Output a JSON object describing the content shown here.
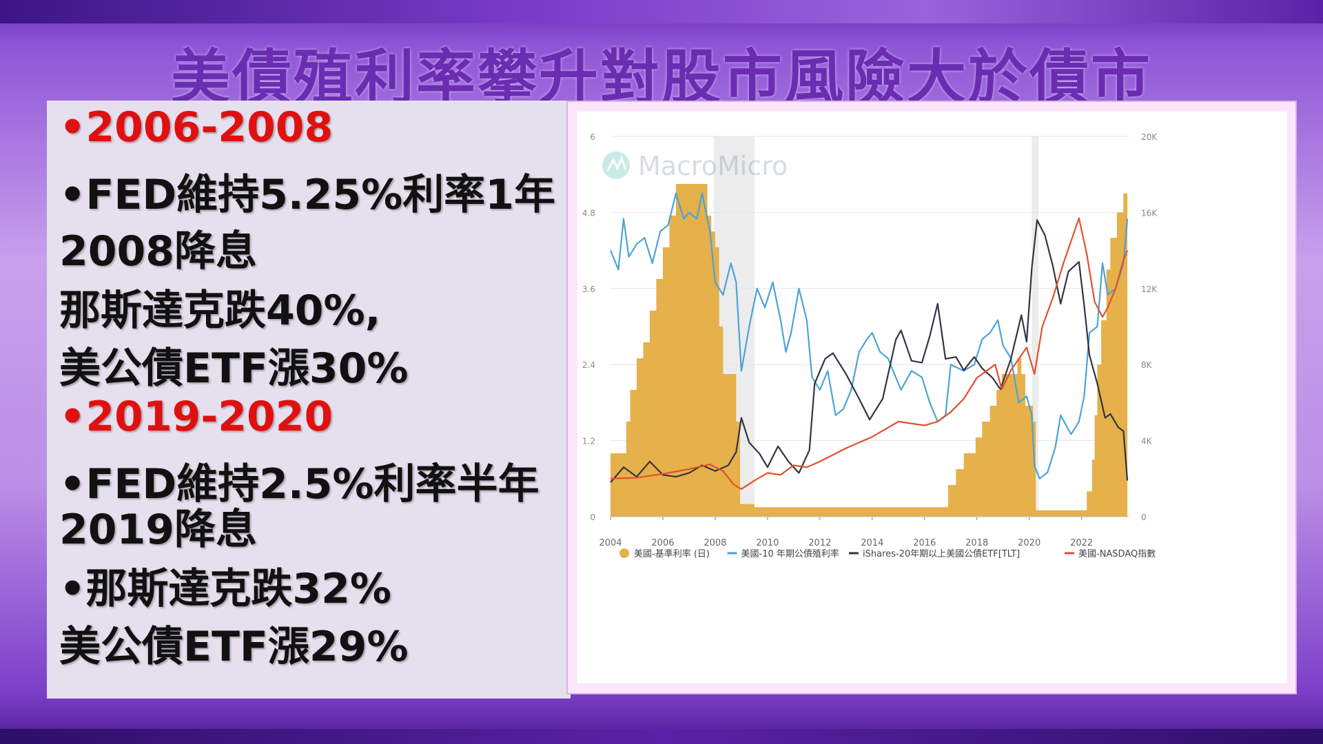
{
  "slide": {
    "title": "美債殖利率攀升對股市風險大於債市",
    "lines": [
      {
        "text": "•2006-2008",
        "style": "red"
      },
      {
        "text": "•FED維持5.25%利率1年",
        "style": "black"
      },
      {
        "text": "2008降息",
        "style": "black"
      },
      {
        "text": "那斯達克跌40%,",
        "style": "black"
      },
      {
        "text": "美公債ETF漲30%",
        "style": "black"
      },
      {
        "text": "•2019-2020",
        "style": "red"
      },
      {
        "text": "•FED維持2.5%利率半年",
        "style": "black"
      },
      {
        "text": "2019降息",
        "style": "black"
      },
      {
        "text": "•那斯達克跌32%",
        "style": "black"
      },
      {
        "text": "美公債ETF漲29%",
        "style": "black"
      }
    ],
    "watermark": "MacroMicro"
  },
  "chart_data": {
    "type": "line",
    "title": "",
    "x_ticks": [
      "2004",
      "2006",
      "2008",
      "2010",
      "2012",
      "2014",
      "2016",
      "2018",
      "2020",
      "2022"
    ],
    "xlim": [
      2004,
      2023.8
    ],
    "y_left_ticks": [
      "0",
      "1.2",
      "2.4",
      "3.6",
      "4.8",
      "6"
    ],
    "ylim_left": [
      0,
      6
    ],
    "y_right_ticks": [
      "0",
      "4K",
      "8K",
      "12K",
      "16K",
      "20K"
    ],
    "ylim_right": [
      0,
      20000
    ],
    "recessions": [
      [
        2007.95,
        2009.5
      ],
      [
        2020.1,
        2020.35
      ]
    ],
    "legend_position": "bottom",
    "colors": {
      "fed": "#e6b04a",
      "y10": "#4aa3d8",
      "tlt": "#2f3542",
      "nasdaq": "#e0502e"
    },
    "series": [
      {
        "name": "美國-基準利率 (日)",
        "type": "area",
        "axis": "left",
        "x": [
          2004.0,
          2004.45,
          2004.6,
          2004.75,
          2005.0,
          2005.25,
          2005.5,
          2005.75,
          2006.0,
          2006.25,
          2006.5,
          2007.0,
          2007.5,
          2007.7,
          2007.85,
          2008.0,
          2008.15,
          2008.3,
          2008.8,
          2008.95,
          2009.5,
          2012.0,
          2015.9,
          2016.9,
          2017.2,
          2017.5,
          2017.95,
          2018.2,
          2018.5,
          2018.75,
          2018.95,
          2019.55,
          2019.7,
          2019.85,
          2020.15,
          2020.25,
          2022.0,
          2022.2,
          2022.4,
          2022.5,
          2022.6,
          2022.75,
          2022.95,
          2023.1,
          2023.35,
          2023.6,
          2023.75
        ],
        "values": [
          1.0,
          1.0,
          1.5,
          2.0,
          2.5,
          2.75,
          3.25,
          3.75,
          4.25,
          4.75,
          5.25,
          5.25,
          5.25,
          4.75,
          4.5,
          4.25,
          3.0,
          2.25,
          1.5,
          0.2,
          0.15,
          0.15,
          0.15,
          0.5,
          0.75,
          1.0,
          1.25,
          1.5,
          1.75,
          2.0,
          2.25,
          2.5,
          2.25,
          1.75,
          1.5,
          0.1,
          0.1,
          0.4,
          0.9,
          1.6,
          2.4,
          3.1,
          3.9,
          4.4,
          4.8,
          5.1,
          5.3
        ]
      },
      {
        "name": "美國-10 年期公債殖利率",
        "type": "line",
        "axis": "left",
        "x": [
          2004.0,
          2004.3,
          2004.5,
          2004.7,
          2005.0,
          2005.3,
          2005.6,
          2005.9,
          2006.2,
          2006.5,
          2006.8,
          2007.0,
          2007.3,
          2007.5,
          2007.8,
          2008.0,
          2008.3,
          2008.6,
          2008.8,
          2009.0,
          2009.3,
          2009.6,
          2009.9,
          2010.2,
          2010.5,
          2010.7,
          2010.9,
          2011.2,
          2011.5,
          2011.7,
          2012.0,
          2012.3,
          2012.6,
          2012.9,
          2013.2,
          2013.5,
          2013.8,
          2014.0,
          2014.3,
          2014.6,
          2014.9,
          2015.1,
          2015.5,
          2015.9,
          2016.2,
          2016.5,
          2016.8,
          2017.0,
          2017.5,
          2017.9,
          2018.2,
          2018.5,
          2018.8,
          2019.0,
          2019.3,
          2019.6,
          2019.9,
          2020.1,
          2020.2,
          2020.4,
          2020.7,
          2021.0,
          2021.2,
          2021.6,
          2021.9,
          2022.1,
          2022.3,
          2022.6,
          2022.8,
          2023.0,
          2023.3,
          2023.6,
          2023.75
        ],
        "values": [
          4.2,
          3.9,
          4.7,
          4.1,
          4.3,
          4.4,
          4.0,
          4.5,
          4.6,
          5.1,
          4.7,
          4.8,
          4.7,
          5.1,
          4.5,
          3.7,
          3.5,
          4.0,
          3.7,
          2.3,
          3.0,
          3.6,
          3.3,
          3.7,
          3.1,
          2.6,
          2.9,
          3.6,
          3.1,
          2.2,
          2.0,
          2.3,
          1.6,
          1.7,
          2.0,
          2.6,
          2.8,
          2.9,
          2.6,
          2.5,
          2.2,
          2.0,
          2.3,
          2.2,
          1.8,
          1.5,
          1.6,
          2.4,
          2.3,
          2.4,
          2.8,
          2.9,
          3.1,
          2.7,
          2.5,
          1.8,
          1.9,
          1.6,
          0.8,
          0.6,
          0.7,
          1.1,
          1.6,
          1.3,
          1.5,
          1.9,
          2.9,
          3.0,
          4.0,
          3.5,
          3.6,
          4.0,
          4.7
        ]
      },
      {
        "name": "iShares-20年期以上美國公債ETF[TLT]",
        "type": "line",
        "axis": "right",
        "x": [
          2004.0,
          2004.5,
          2005.0,
          2005.5,
          2006.0,
          2006.5,
          2007.0,
          2007.5,
          2008.0,
          2008.5,
          2008.8,
          2009.0,
          2009.3,
          2009.7,
          2010.0,
          2010.4,
          2010.8,
          2011.2,
          2011.6,
          2011.8,
          2012.2,
          2012.5,
          2013.0,
          2013.5,
          2013.9,
          2014.4,
          2014.9,
          2015.1,
          2015.5,
          2015.9,
          2016.2,
          2016.5,
          2016.8,
          2017.2,
          2017.5,
          2017.9,
          2018.2,
          2018.6,
          2018.9,
          2019.3,
          2019.7,
          2019.9,
          2020.1,
          2020.3,
          2020.6,
          2020.9,
          2021.2,
          2021.5,
          2021.9,
          2022.1,
          2022.3,
          2022.6,
          2022.9,
          2023.1,
          2023.4,
          2023.6,
          2023.75
        ],
        "values": [
          1800,
          2600,
          2100,
          2900,
          2200,
          2100,
          2300,
          2700,
          2400,
          2700,
          3400,
          5200,
          3900,
          3300,
          2600,
          3700,
          2900,
          2300,
          3500,
          7000,
          8300,
          8600,
          7500,
          6200,
          5100,
          6200,
          9300,
          9800,
          8200,
          8100,
          9500,
          11200,
          8300,
          8400,
          7700,
          8400,
          7800,
          7300,
          6700,
          8300,
          10600,
          9200,
          13100,
          15600,
          14800,
          13200,
          11200,
          12900,
          13400,
          11100,
          8500,
          7000,
          5200,
          5400,
          4700,
          4500,
          1900
        ]
      },
      {
        "name": "美國-NASDAQ指數",
        "type": "line",
        "axis": "right",
        "x": [
          2004.0,
          2005.0,
          2006.0,
          2007.0,
          2007.8,
          2008.3,
          2008.7,
          2009.0,
          2009.5,
          2010.0,
          2010.5,
          2011.0,
          2011.5,
          2012.0,
          2013.0,
          2014.0,
          2015.0,
          2016.0,
          2016.5,
          2017.0,
          2017.5,
          2018.0,
          2018.7,
          2018.95,
          2019.3,
          2019.9,
          2020.2,
          2020.5,
          2020.9,
          2021.3,
          2021.6,
          2021.9,
          2022.2,
          2022.5,
          2022.8,
          2023.0,
          2023.3,
          2023.6,
          2023.75
        ],
        "values": [
          2000,
          2050,
          2250,
          2500,
          2750,
          2400,
          1700,
          1450,
          1900,
          2300,
          2200,
          2700,
          2600,
          2900,
          3600,
          4200,
          5000,
          4800,
          5000,
          5500,
          6200,
          7300,
          8000,
          6700,
          7700,
          8900,
          7500,
          10000,
          11500,
          13300,
          14500,
          15700,
          13800,
          11300,
          10500,
          11000,
          12000,
          13500,
          14000
        ]
      }
    ]
  }
}
